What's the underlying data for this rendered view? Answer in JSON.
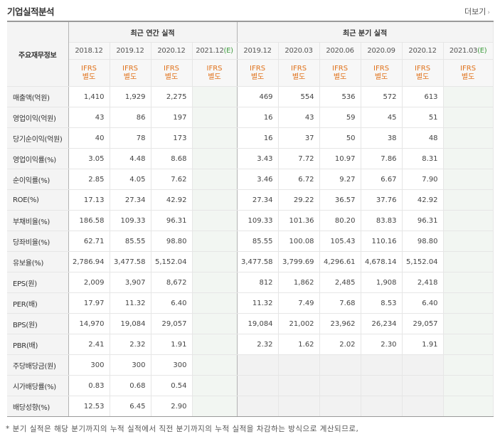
{
  "title": "기업실적분석",
  "more_label": "더보기",
  "more_icon": "chevron-right-icon",
  "key_header": "주요재무정보",
  "group_annual": "최근 연간 실적",
  "group_quarter": "최근 분기 실적",
  "periods": [
    {
      "label": "2018.12",
      "est": ""
    },
    {
      "label": "2019.12",
      "est": ""
    },
    {
      "label": "2020.12",
      "est": ""
    },
    {
      "label": "2021.12",
      "est": "(E)"
    },
    {
      "label": "2019.12",
      "est": ""
    },
    {
      "label": "2020.03",
      "est": ""
    },
    {
      "label": "2020.06",
      "est": ""
    },
    {
      "label": "2020.09",
      "est": ""
    },
    {
      "label": "2020.12",
      "est": ""
    },
    {
      "label": "2021.03",
      "est": "(E)"
    }
  ],
  "basis_line1": "IFRS",
  "basis_line2": "별도",
  "rows": [
    {
      "label": "매출액(억원)",
      "values": [
        "1,410",
        "1,929",
        "2,275",
        "",
        "469",
        "554",
        "536",
        "572",
        "613",
        ""
      ]
    },
    {
      "label": "영업이익(억원)",
      "values": [
        "43",
        "86",
        "197",
        "",
        "16",
        "43",
        "59",
        "45",
        "51",
        ""
      ]
    },
    {
      "label": "당기순이익(억원)",
      "values": [
        "40",
        "78",
        "173",
        "",
        "16",
        "37",
        "50",
        "38",
        "48",
        ""
      ]
    },
    {
      "label": "영업이익률(%)",
      "values": [
        "3.05",
        "4.48",
        "8.68",
        "",
        "3.43",
        "7.72",
        "10.97",
        "7.86",
        "8.31",
        ""
      ]
    },
    {
      "label": "순이익률(%)",
      "values": [
        "2.85",
        "4.05",
        "7.62",
        "",
        "3.46",
        "6.72",
        "9.27",
        "6.67",
        "7.90",
        ""
      ]
    },
    {
      "label": "ROE(%)",
      "values": [
        "17.13",
        "27.34",
        "42.92",
        "",
        "27.34",
        "29.22",
        "36.57",
        "37.76",
        "42.92",
        ""
      ]
    },
    {
      "label": "부채비율(%)",
      "values": [
        "186.58",
        "109.33",
        "96.31",
        "",
        "109.33",
        "101.36",
        "80.20",
        "83.83",
        "96.31",
        ""
      ]
    },
    {
      "label": "당좌비율(%)",
      "values": [
        "62.71",
        "85.55",
        "98.80",
        "",
        "85.55",
        "100.08",
        "105.43",
        "110.16",
        "98.80",
        ""
      ]
    },
    {
      "label": "유보율(%)",
      "values": [
        "2,786.94",
        "3,477.58",
        "5,152.04",
        "",
        "3,477.58",
        "3,799.69",
        "4,296.61",
        "4,678.14",
        "5,152.04",
        ""
      ]
    },
    {
      "label": "EPS(원)",
      "values": [
        "2,009",
        "3,907",
        "8,672",
        "",
        "812",
        "1,862",
        "2,485",
        "1,908",
        "2,418",
        ""
      ]
    },
    {
      "label": "PER(배)",
      "values": [
        "17.97",
        "11.32",
        "6.40",
        "",
        "11.32",
        "7.49",
        "7.68",
        "8.53",
        "6.40",
        ""
      ]
    },
    {
      "label": "BPS(원)",
      "values": [
        "14,970",
        "19,084",
        "29,057",
        "",
        "19,084",
        "21,002",
        "23,962",
        "26,234",
        "29,057",
        ""
      ]
    },
    {
      "label": "PBR(배)",
      "values": [
        "2.41",
        "2.32",
        "1.91",
        "",
        "2.32",
        "1.62",
        "2.02",
        "2.30",
        "1.91",
        ""
      ]
    },
    {
      "label": "주당배당금(원)",
      "values": [
        "300",
        "300",
        "300",
        "",
        "",
        "",
        "",
        "",
        "",
        ""
      ]
    },
    {
      "label": "시가배당률(%)",
      "values": [
        "0.83",
        "0.68",
        "0.54",
        "",
        "",
        "",
        "",
        "",
        "",
        ""
      ]
    },
    {
      "label": "배당성향(%)",
      "values": [
        "12.53",
        "6.45",
        "2.90",
        "",
        "",
        "",
        "",
        "",
        "",
        ""
      ]
    }
  ],
  "footnote": "* 분기 실적은 해당 분기까지의 누적 실적에서 직전 분기까지의 누적 실적을 차감하는 방식으로 계산되므로,"
}
